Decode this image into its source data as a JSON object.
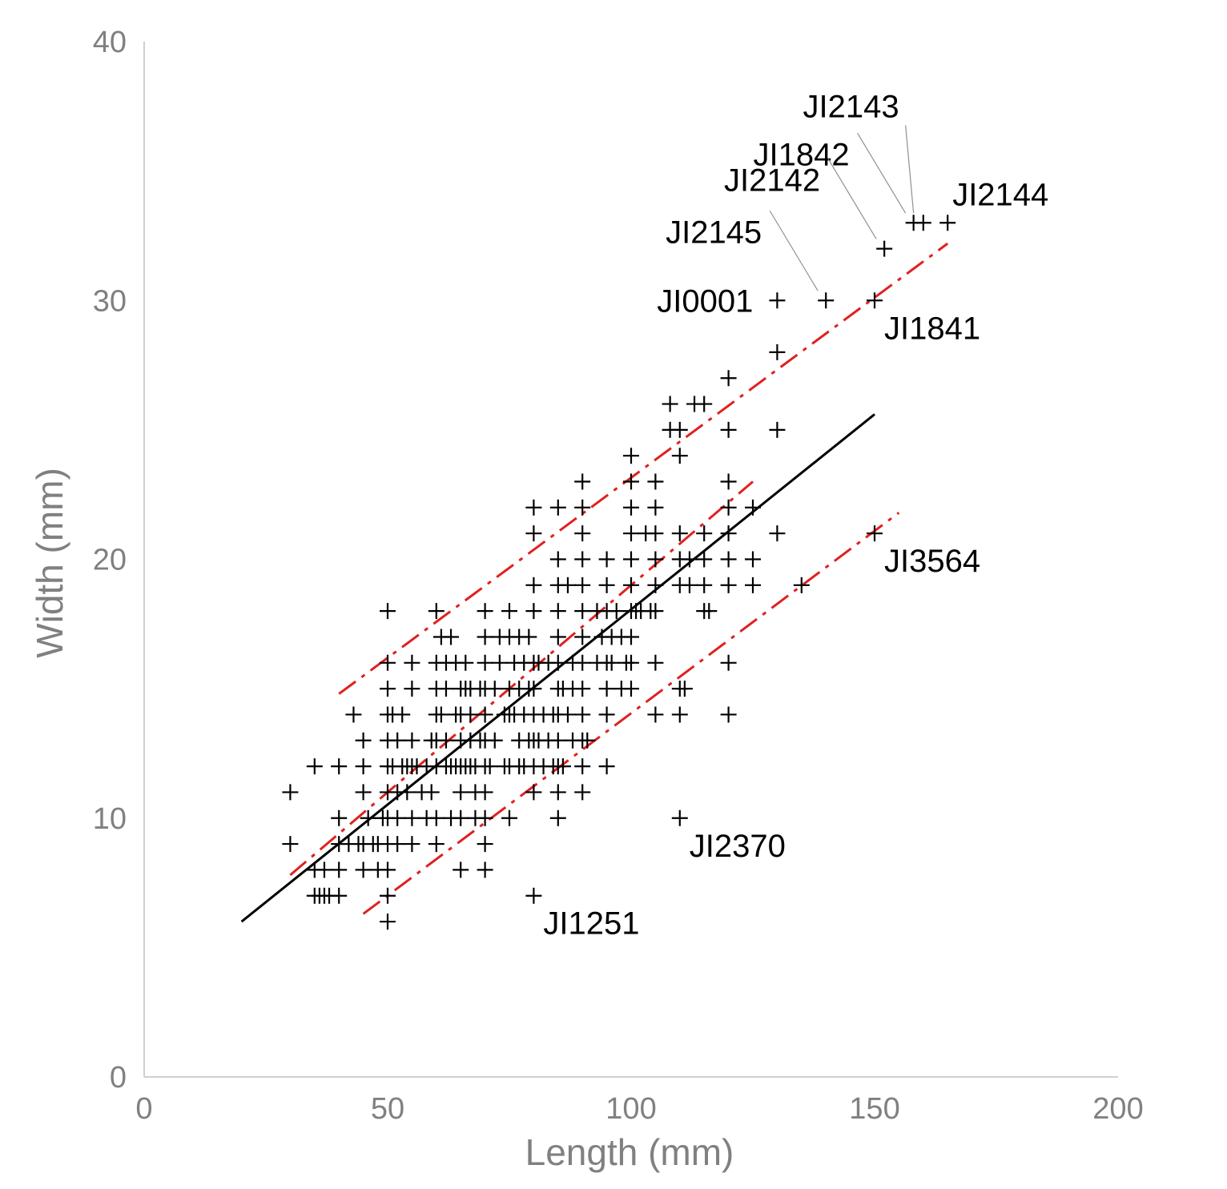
{
  "chart_data": {
    "type": "scatter",
    "title": "",
    "xlabel": "Length (mm)",
    "ylabel": "Width (mm)",
    "xlim": [
      0,
      200
    ],
    "ylim": [
      0,
      40
    ],
    "xticks": [
      0,
      50,
      100,
      150,
      200
    ],
    "yticks": [
      0,
      10,
      20,
      30,
      40
    ],
    "grid": false,
    "legend": "none",
    "colors": {
      "points": "#000000",
      "trend": "#000000",
      "bands": "#e02020",
      "axis": "#d0d0d0",
      "text": "#808080"
    },
    "points": [
      [
        30,
        11
      ],
      [
        30,
        9
      ],
      [
        35,
        12
      ],
      [
        35,
        8
      ],
      [
        35,
        7
      ],
      [
        36,
        7
      ],
      [
        37,
        8
      ],
      [
        37,
        7
      ],
      [
        38,
        7
      ],
      [
        40,
        12
      ],
      [
        40,
        10
      ],
      [
        40,
        9
      ],
      [
        40,
        8
      ],
      [
        40,
        7
      ],
      [
        42,
        9
      ],
      [
        43,
        14
      ],
      [
        44,
        9
      ],
      [
        45,
        13
      ],
      [
        45,
        12
      ],
      [
        45,
        11
      ],
      [
        45,
        9
      ],
      [
        45,
        8
      ],
      [
        46,
        10
      ],
      [
        47,
        9
      ],
      [
        48,
        9
      ],
      [
        48,
        8
      ],
      [
        49,
        10
      ],
      [
        50,
        18
      ],
      [
        50,
        16
      ],
      [
        50,
        15
      ],
      [
        50,
        14
      ],
      [
        50,
        13
      ],
      [
        50,
        12
      ],
      [
        50,
        11
      ],
      [
        50,
        10
      ],
      [
        50,
        9
      ],
      [
        50,
        8
      ],
      [
        50,
        7
      ],
      [
        50,
        6
      ],
      [
        51,
        14
      ],
      [
        51,
        12
      ],
      [
        52,
        13
      ],
      [
        52,
        11
      ],
      [
        52,
        10
      ],
      [
        52,
        9
      ],
      [
        53,
        14
      ],
      [
        53,
        12
      ],
      [
        54,
        12
      ],
      [
        54,
        11
      ],
      [
        55,
        16
      ],
      [
        55,
        15
      ],
      [
        55,
        13
      ],
      [
        55,
        12
      ],
      [
        55,
        10
      ],
      [
        55,
        9
      ],
      [
        56,
        12
      ],
      [
        57,
        11
      ],
      [
        58,
        12
      ],
      [
        58,
        10
      ],
      [
        59,
        13
      ],
      [
        59,
        11
      ],
      [
        60,
        18
      ],
      [
        60,
        16
      ],
      [
        60,
        15
      ],
      [
        60,
        14
      ],
      [
        60,
        13
      ],
      [
        60,
        12
      ],
      [
        60,
        10
      ],
      [
        60,
        9
      ],
      [
        61,
        17
      ],
      [
        61,
        14
      ],
      [
        62,
        16
      ],
      [
        62,
        15
      ],
      [
        62,
        13
      ],
      [
        62,
        12
      ],
      [
        63,
        17
      ],
      [
        63,
        12
      ],
      [
        63,
        10
      ],
      [
        64,
        16
      ],
      [
        64,
        14
      ],
      [
        64,
        12
      ],
      [
        65,
        15
      ],
      [
        65,
        14
      ],
      [
        65,
        13
      ],
      [
        65,
        12
      ],
      [
        65,
        11
      ],
      [
        65,
        10
      ],
      [
        65,
        8
      ],
      [
        66,
        16
      ],
      [
        66,
        15
      ],
      [
        66,
        12
      ],
      [
        67,
        15
      ],
      [
        67,
        14
      ],
      [
        67,
        13
      ],
      [
        67,
        12
      ],
      [
        68,
        12
      ],
      [
        68,
        11
      ],
      [
        68,
        10
      ],
      [
        69,
        15
      ],
      [
        69,
        13
      ],
      [
        70,
        18
      ],
      [
        70,
        17
      ],
      [
        70,
        16
      ],
      [
        70,
        15
      ],
      [
        70,
        14
      ],
      [
        70,
        13
      ],
      [
        70,
        12
      ],
      [
        70,
        11
      ],
      [
        70,
        10
      ],
      [
        70,
        9
      ],
      [
        70,
        8
      ],
      [
        71,
        12
      ],
      [
        72,
        15
      ],
      [
        72,
        13
      ],
      [
        73,
        17
      ],
      [
        73,
        16
      ],
      [
        74,
        14
      ],
      [
        74,
        12
      ],
      [
        75,
        18
      ],
      [
        75,
        17
      ],
      [
        75,
        15
      ],
      [
        75,
        14
      ],
      [
        75,
        12
      ],
      [
        75,
        10
      ],
      [
        76,
        16
      ],
      [
        76,
        14
      ],
      [
        77,
        17
      ],
      [
        77,
        15
      ],
      [
        77,
        13
      ],
      [
        77,
        12
      ],
      [
        78,
        16
      ],
      [
        78,
        14
      ],
      [
        78,
        12
      ],
      [
        79,
        17
      ],
      [
        79,
        15
      ],
      [
        79,
        13
      ],
      [
        80,
        22
      ],
      [
        80,
        21
      ],
      [
        80,
        19
      ],
      [
        80,
        18
      ],
      [
        80,
        16
      ],
      [
        80,
        15
      ],
      [
        80,
        14
      ],
      [
        80,
        13
      ],
      [
        80,
        12
      ],
      [
        80,
        11
      ],
      [
        80,
        7
      ],
      [
        81,
        16
      ],
      [
        81,
        13
      ],
      [
        82,
        14
      ],
      [
        82,
        12
      ],
      [
        83,
        16
      ],
      [
        83,
        13
      ],
      [
        84,
        14
      ],
      [
        84,
        12
      ],
      [
        85,
        22
      ],
      [
        85,
        20
      ],
      [
        85,
        19
      ],
      [
        85,
        18
      ],
      [
        85,
        17
      ],
      [
        85,
        16
      ],
      [
        85,
        15
      ],
      [
        85,
        14
      ],
      [
        85,
        13
      ],
      [
        85,
        12
      ],
      [
        85,
        11
      ],
      [
        85,
        10
      ],
      [
        86,
        15
      ],
      [
        86,
        12
      ],
      [
        87,
        19
      ],
      [
        87,
        14
      ],
      [
        88,
        16
      ],
      [
        88,
        15
      ],
      [
        88,
        13
      ],
      [
        90,
        23
      ],
      [
        90,
        22
      ],
      [
        90,
        21
      ],
      [
        90,
        20
      ],
      [
        90,
        19
      ],
      [
        90,
        18
      ],
      [
        90,
        17
      ],
      [
        90,
        16
      ],
      [
        90,
        15
      ],
      [
        90,
        14
      ],
      [
        90,
        13
      ],
      [
        90,
        12
      ],
      [
        90,
        11
      ],
      [
        91,
        13
      ],
      [
        93,
        18
      ],
      [
        93,
        16
      ],
      [
        94,
        17
      ],
      [
        95,
        20
      ],
      [
        95,
        19
      ],
      [
        95,
        18
      ],
      [
        95,
        16
      ],
      [
        95,
        15
      ],
      [
        95,
        14
      ],
      [
        95,
        12
      ],
      [
        96,
        17
      ],
      [
        96,
        16
      ],
      [
        97,
        18
      ],
      [
        98,
        17
      ],
      [
        98,
        15
      ],
      [
        99,
        16
      ],
      [
        100,
        24
      ],
      [
        100,
        23
      ],
      [
        100,
        22
      ],
      [
        100,
        21
      ],
      [
        100,
        20
      ],
      [
        100,
        19
      ],
      [
        100,
        18
      ],
      [
        100,
        17
      ],
      [
        100,
        16
      ],
      [
        100,
        15
      ],
      [
        101,
        18
      ],
      [
        102,
        18
      ],
      [
        103,
        21
      ],
      [
        104,
        18
      ],
      [
        105,
        23
      ],
      [
        105,
        22
      ],
      [
        105,
        21
      ],
      [
        105,
        20
      ],
      [
        105,
        19
      ],
      [
        105,
        18
      ],
      [
        105,
        16
      ],
      [
        105,
        14
      ],
      [
        108,
        26
      ],
      [
        108,
        25
      ],
      [
        110,
        25
      ],
      [
        110,
        24
      ],
      [
        110,
        21
      ],
      [
        110,
        20
      ],
      [
        110,
        19
      ],
      [
        110,
        15
      ],
      [
        110,
        14
      ],
      [
        110,
        10
      ],
      [
        111,
        15
      ],
      [
        112,
        20
      ],
      [
        112,
        19
      ],
      [
        113,
        26
      ],
      [
        115,
        26
      ],
      [
        115,
        21
      ],
      [
        115,
        20
      ],
      [
        115,
        19
      ],
      [
        115,
        18
      ],
      [
        116,
        18
      ],
      [
        120,
        27
      ],
      [
        120,
        25
      ],
      [
        120,
        23
      ],
      [
        120,
        22
      ],
      [
        120,
        21
      ],
      [
        120,
        20
      ],
      [
        120,
        19
      ],
      [
        120,
        16
      ],
      [
        120,
        14
      ],
      [
        125,
        22
      ],
      [
        125,
        20
      ],
      [
        125,
        19
      ],
      [
        130,
        30
      ],
      [
        130,
        28
      ],
      [
        130,
        25
      ],
      [
        130,
        21
      ],
      [
        135,
        19
      ],
      [
        140,
        30
      ],
      [
        150,
        30
      ],
      [
        150,
        21
      ],
      [
        152,
        32
      ],
      [
        158,
        33
      ],
      [
        160,
        33
      ],
      [
        165,
        33
      ]
    ],
    "trendline": {
      "x": [
        20,
        150
      ],
      "y": [
        6,
        25.6
      ]
    },
    "bands": [
      {
        "name": "upper",
        "x": [
          40,
          165
        ],
        "y": [
          14.8,
          32.2
        ]
      },
      {
        "name": "middle",
        "x": [
          30,
          125
        ],
        "y": [
          7.8,
          23
        ]
      },
      {
        "name": "lower",
        "x": [
          45,
          155
        ],
        "y": [
          6.3,
          21.8
        ]
      }
    ],
    "annotations": [
      {
        "text": "JI2143",
        "x": 158,
        "y": 33,
        "pos": "above-left",
        "leader": true
      },
      {
        "text": "JI1842",
        "x": 158,
        "y": 33,
        "pos": "left",
        "leader": true
      },
      {
        "text": "JI2144",
        "x": 165,
        "y": 33,
        "pos": "above-right",
        "leader": false
      },
      {
        "text": "JI2142",
        "x": 152,
        "y": 32,
        "pos": "left",
        "leader": true
      },
      {
        "text": "JI2145",
        "x": 140,
        "y": 30,
        "pos": "left",
        "leader": true
      },
      {
        "text": "JI0001",
        "x": 130,
        "y": 30,
        "pos": "left",
        "leader": false
      },
      {
        "text": "JI1841",
        "x": 150,
        "y": 30,
        "pos": "below-right",
        "leader": false
      },
      {
        "text": "JI3564",
        "x": 150,
        "y": 21,
        "pos": "below-right",
        "leader": false
      },
      {
        "text": "JI2370",
        "x": 110,
        "y": 10,
        "pos": "below-right",
        "leader": false
      },
      {
        "text": "JI1251",
        "x": 80,
        "y": 7,
        "pos": "below-right",
        "leader": false
      }
    ]
  }
}
